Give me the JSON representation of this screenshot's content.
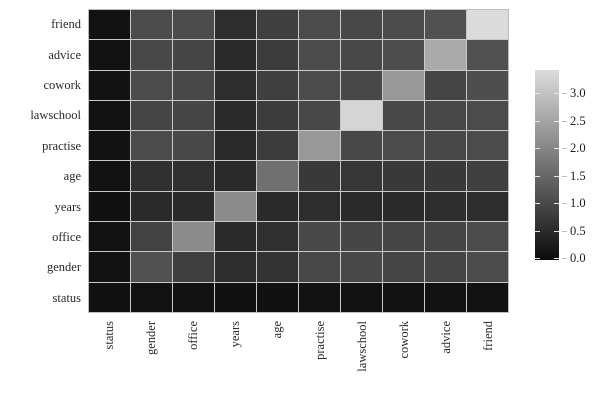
{
  "chart_data": {
    "type": "heatmap",
    "title": "",
    "xlabel": "",
    "ylabel": "",
    "row_labels": [
      "friend",
      "advice",
      "cowork",
      "lawschool",
      "practise",
      "age",
      "years",
      "office",
      "gender",
      "status"
    ],
    "col_labels": [
      "status",
      "gender",
      "office",
      "years",
      "age",
      "practise",
      "lawschool",
      "cowork",
      "advice",
      "friend"
    ],
    "matrix": [
      [
        0.12,
        1.05,
        1.05,
        0.55,
        0.85,
        1.05,
        1.0,
        1.05,
        1.15,
        3.4
      ],
      [
        0.12,
        1.0,
        0.95,
        0.5,
        0.8,
        1.05,
        1.0,
        1.1,
        2.6,
        1.15
      ],
      [
        0.12,
        1.05,
        1.0,
        0.55,
        0.85,
        1.05,
        1.0,
        2.3,
        0.95,
        1.1
      ],
      [
        0.12,
        0.95,
        0.95,
        0.5,
        0.8,
        1.0,
        3.3,
        1.0,
        1.0,
        1.05
      ],
      [
        0.12,
        1.05,
        1.0,
        0.5,
        0.8,
        2.3,
        1.0,
        1.05,
        1.0,
        1.05
      ],
      [
        0.12,
        0.6,
        0.6,
        0.5,
        1.65,
        0.75,
        0.7,
        0.75,
        0.75,
        0.85
      ],
      [
        0.1,
        0.5,
        0.5,
        2.1,
        0.5,
        0.55,
        0.5,
        0.5,
        0.55,
        0.55
      ],
      [
        0.12,
        0.9,
        2.1,
        0.5,
        0.6,
        1.0,
        0.95,
        0.95,
        0.95,
        1.05
      ],
      [
        0.12,
        1.15,
        0.85,
        0.55,
        0.65,
        1.0,
        1.0,
        0.95,
        0.95,
        1.05
      ],
      [
        0.1,
        0.12,
        0.12,
        0.1,
        0.1,
        0.12,
        0.12,
        0.12,
        0.12,
        0.12
      ]
    ],
    "colorbar": {
      "position": "right",
      "tick_labels": [
        "3.0",
        "2.5",
        "2.0",
        "1.5",
        "1.0",
        "0.5",
        "0.0"
      ],
      "tick_values": [
        3.0,
        2.5,
        2.0,
        1.5,
        1.0,
        0.5,
        0.0
      ],
      "vmin": 0.0,
      "vmax": 3.42,
      "color_min": "#0b0b0b",
      "color_max": "#dcdcdc"
    },
    "grid": true,
    "grid_color": "#c9c9c9",
    "x_tick_rotation": 90
  }
}
